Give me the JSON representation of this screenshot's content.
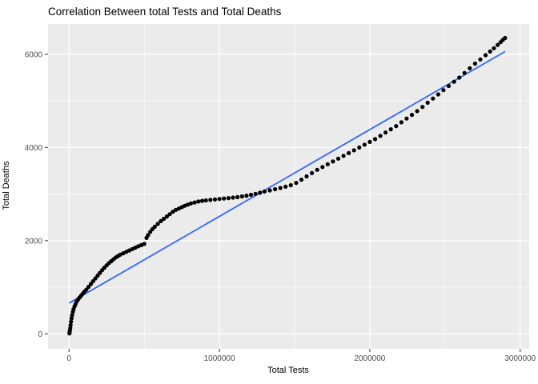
{
  "chart_data": {
    "type": "scatter",
    "title": "Correlation Between total Tests and Total Deaths",
    "xlabel": "Total Tests",
    "ylabel": "Total Deaths",
    "xlim": [
      -140000,
      3060000
    ],
    "ylim": [
      -320,
      6650
    ],
    "x_ticks": {
      "values": [
        0,
        1000000,
        2000000,
        3000000
      ],
      "labels": [
        "0",
        "1000000",
        "2000000",
        "3000000"
      ]
    },
    "y_ticks": {
      "values": [
        0,
        2000,
        4000,
        6000
      ],
      "labels": [
        "0",
        "2000",
        "4000",
        "6000"
      ]
    },
    "x_minor_ticks": [
      500000,
      1500000,
      2500000
    ],
    "y_minor_ticks": [
      1000,
      3000,
      5000
    ],
    "grid": "on",
    "legend": "none",
    "colors": {
      "panel_bg": "#EBEBEB",
      "grid": "#FFFFFF",
      "point": "#000000",
      "regression_line": "#3366FF",
      "tick_text": "#4D4D4D",
      "tick_mark": "#333333"
    },
    "regression_line": {
      "x": [
        0,
        2900000
      ],
      "y": [
        660,
        6060
      ]
    },
    "points": [
      [
        2000,
        10
      ],
      [
        4000,
        40
      ],
      [
        6000,
        80
      ],
      [
        8000,
        130
      ],
      [
        10000,
        190
      ],
      [
        13000,
        260
      ],
      [
        16000,
        330
      ],
      [
        20000,
        400
      ],
      [
        25000,
        470
      ],
      [
        30000,
        530
      ],
      [
        36000,
        590
      ],
      [
        43000,
        640
      ],
      [
        50000,
        690
      ],
      [
        60000,
        740
      ],
      [
        70000,
        780
      ],
      [
        80000,
        820
      ],
      [
        90000,
        860
      ],
      [
        100000,
        900
      ],
      [
        115000,
        950
      ],
      [
        130000,
        1010
      ],
      [
        145000,
        1070
      ],
      [
        160000,
        1130
      ],
      [
        175000,
        1190
      ],
      [
        190000,
        1250
      ],
      [
        205000,
        1310
      ],
      [
        220000,
        1370
      ],
      [
        235000,
        1420
      ],
      [
        250000,
        1470
      ],
      [
        265000,
        1520
      ],
      [
        280000,
        1560
      ],
      [
        295000,
        1600
      ],
      [
        310000,
        1640
      ],
      [
        325000,
        1670
      ],
      [
        340000,
        1700
      ],
      [
        360000,
        1730
      ],
      [
        380000,
        1760
      ],
      [
        400000,
        1790
      ],
      [
        420000,
        1820
      ],
      [
        440000,
        1850
      ],
      [
        460000,
        1880
      ],
      [
        480000,
        1905
      ],
      [
        500000,
        1930
      ],
      [
        515000,
        2060
      ],
      [
        525000,
        2120
      ],
      [
        540000,
        2190
      ],
      [
        555000,
        2250
      ],
      [
        570000,
        2300
      ],
      [
        590000,
        2360
      ],
      [
        610000,
        2420
      ],
      [
        630000,
        2470
      ],
      [
        650000,
        2520
      ],
      [
        670000,
        2570
      ],
      [
        690000,
        2620
      ],
      [
        710000,
        2660
      ],
      [
        730000,
        2690
      ],
      [
        750000,
        2720
      ],
      [
        770000,
        2750
      ],
      [
        790000,
        2775
      ],
      [
        810000,
        2800
      ],
      [
        835000,
        2820
      ],
      [
        860000,
        2840
      ],
      [
        885000,
        2855
      ],
      [
        910000,
        2865
      ],
      [
        940000,
        2875
      ],
      [
        970000,
        2885
      ],
      [
        1000000,
        2895
      ],
      [
        1030000,
        2905
      ],
      [
        1060000,
        2915
      ],
      [
        1090000,
        2925
      ],
      [
        1120000,
        2935
      ],
      [
        1150000,
        2950
      ],
      [
        1180000,
        2965
      ],
      [
        1210000,
        2985
      ],
      [
        1240000,
        3005
      ],
      [
        1270000,
        3030
      ],
      [
        1300000,
        3055
      ],
      [
        1335000,
        3080
      ],
      [
        1370000,
        3105
      ],
      [
        1405000,
        3130
      ],
      [
        1440000,
        3160
      ],
      [
        1475000,
        3190
      ],
      [
        1510000,
        3240
      ],
      [
        1545000,
        3310
      ],
      [
        1580000,
        3380
      ],
      [
        1615000,
        3450
      ],
      [
        1650000,
        3520
      ],
      [
        1685000,
        3580
      ],
      [
        1720000,
        3640
      ],
      [
        1755000,
        3700
      ],
      [
        1790000,
        3760
      ],
      [
        1825000,
        3820
      ],
      [
        1860000,
        3880
      ],
      [
        1895000,
        3940
      ],
      [
        1930000,
        4000
      ],
      [
        1965000,
        4060
      ],
      [
        2000000,
        4120
      ],
      [
        2035000,
        4180
      ],
      [
        2070000,
        4250
      ],
      [
        2105000,
        4320
      ],
      [
        2140000,
        4390
      ],
      [
        2175000,
        4460
      ],
      [
        2210000,
        4540
      ],
      [
        2245000,
        4620
      ],
      [
        2280000,
        4700
      ],
      [
        2315000,
        4780
      ],
      [
        2350000,
        4870
      ],
      [
        2385000,
        4960
      ],
      [
        2420000,
        5050
      ],
      [
        2455000,
        5140
      ],
      [
        2490000,
        5230
      ],
      [
        2525000,
        5320
      ],
      [
        2560000,
        5410
      ],
      [
        2595000,
        5500
      ],
      [
        2630000,
        5600
      ],
      [
        2665000,
        5700
      ],
      [
        2700000,
        5800
      ],
      [
        2735000,
        5890
      ],
      [
        2770000,
        5980
      ],
      [
        2800000,
        6060
      ],
      [
        2825000,
        6130
      ],
      [
        2850000,
        6200
      ],
      [
        2870000,
        6260
      ],
      [
        2885000,
        6310
      ],
      [
        2900000,
        6350
      ]
    ]
  }
}
